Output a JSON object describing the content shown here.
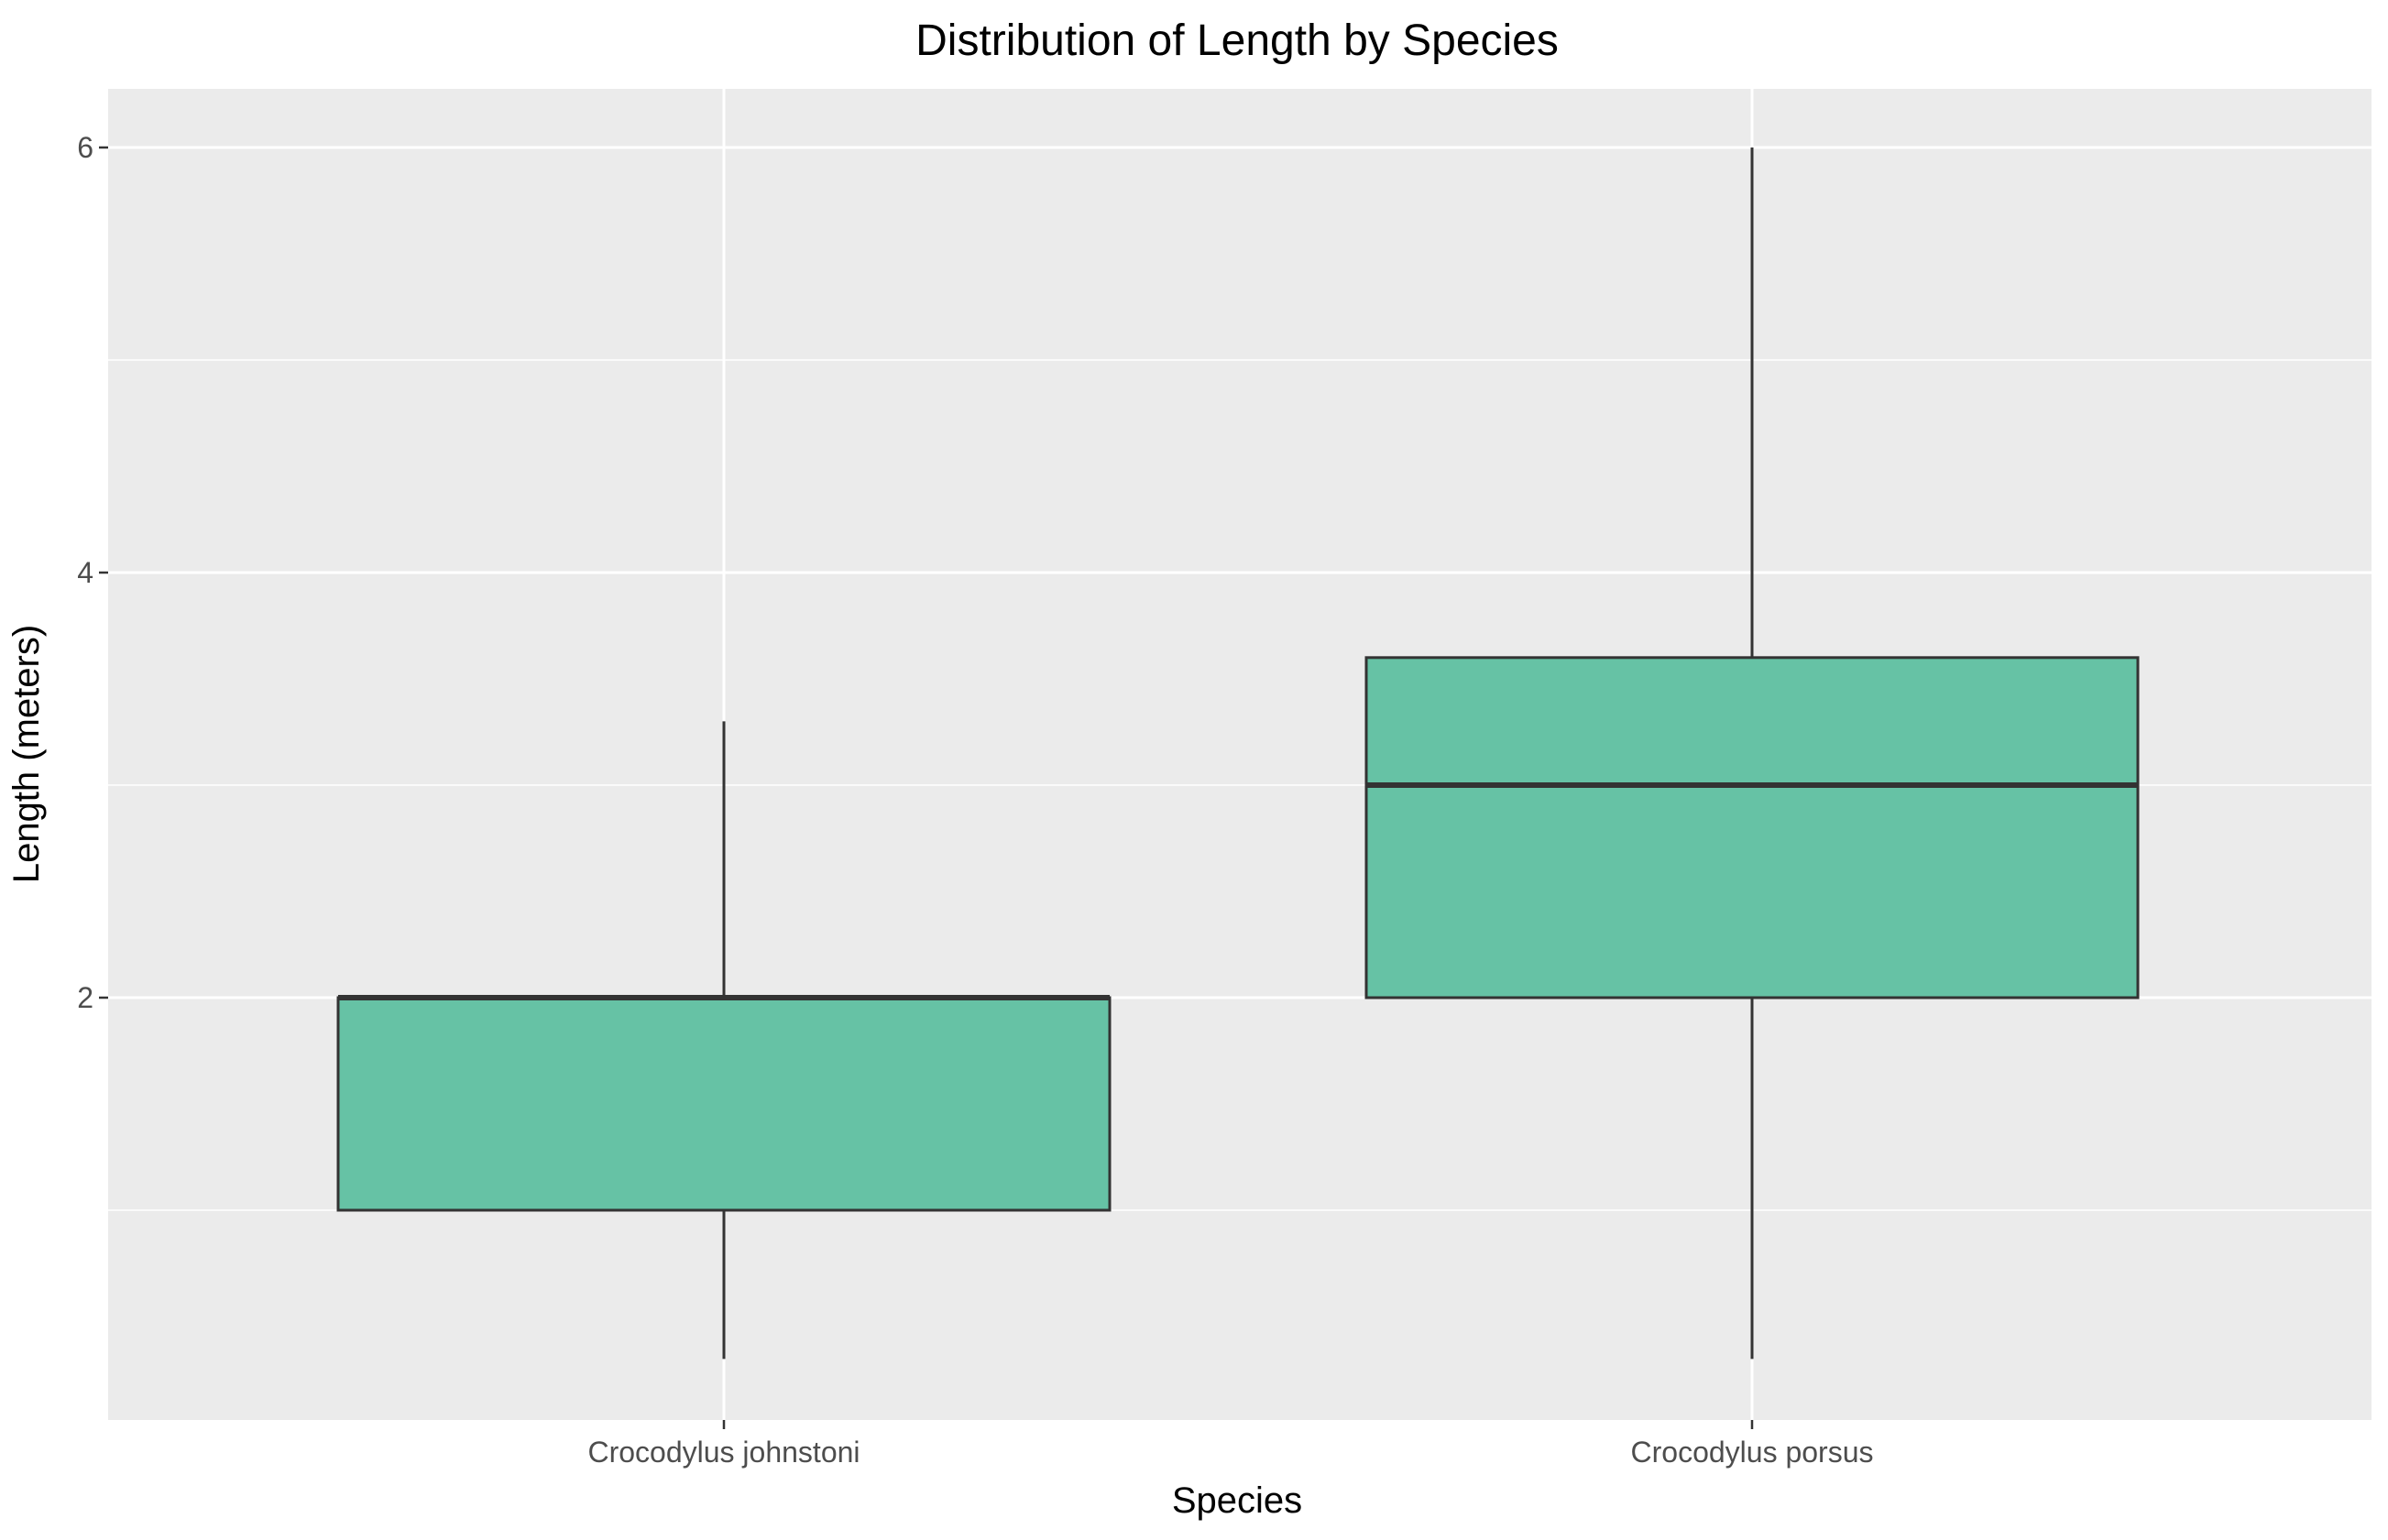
{
  "chart_data": {
    "type": "boxplot",
    "title": "Distribution of Length by Species",
    "xlabel": "Species",
    "ylabel": "Length (meters)",
    "categories": [
      "Crocodylus johnstoni",
      "Crocodylus porsus"
    ],
    "boxes": [
      {
        "category": "Crocodylus johnstoni",
        "min": 0.3,
        "q1": 1.0,
        "median": 2.0,
        "q3": 2.0,
        "max": 3.3
      },
      {
        "category": "Crocodylus porsus",
        "min": 0.3,
        "q1": 2.0,
        "median": 3.0,
        "q3": 3.6,
        "max": 6.0
      }
    ],
    "ylim": [
      0.0,
      6.28
    ],
    "y_ticks": [
      2,
      4,
      6
    ],
    "y_tick_labels": [
      "2",
      "4",
      "6"
    ],
    "y_minor_gridlines": [
      1,
      3,
      5
    ],
    "grid": true,
    "legend": "none",
    "colors": {
      "box_fill": "#66c2a5",
      "box_stroke": "#333333",
      "panel_background": "#ebebeb",
      "gridline": "#ffffff"
    }
  }
}
